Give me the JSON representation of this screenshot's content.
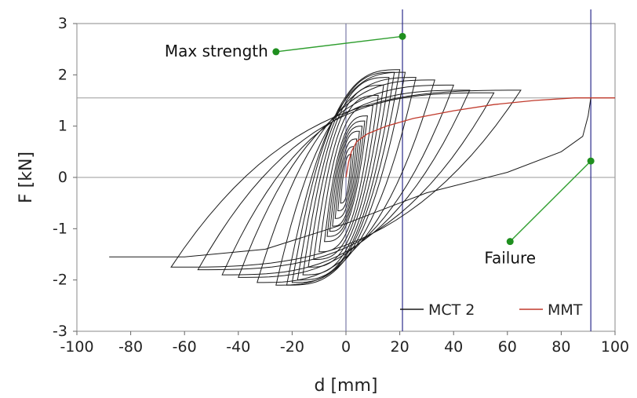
{
  "chart_data": {
    "type": "line",
    "xlabel": "d [mm]",
    "ylabel": "F [kN]",
    "xlim": [
      -100,
      100
    ],
    "ylim": [
      -3,
      3
    ],
    "x_ticks": [
      -100,
      -80,
      -60,
      -40,
      -20,
      0,
      20,
      40,
      60,
      80,
      100
    ],
    "y_ticks": [
      -3,
      -2,
      -1,
      0,
      1,
      2,
      3
    ],
    "x_tick_labels": [
      "-100",
      "-80",
      "-60",
      "-40",
      "-20",
      "0",
      "20",
      "40",
      "60",
      "80",
      "100"
    ],
    "y_tick_labels": [
      "-3",
      "-2",
      "-1",
      "0",
      "1",
      "2",
      "3"
    ],
    "grid": false,
    "legend_position": "bottom-right",
    "colors": {
      "cyclic": "#1a1a1a",
      "monotonic": "#c0392b",
      "marker": "#1f8f1f",
      "marker_line": "#2f9e2f",
      "vline": "#2b2b8c"
    },
    "series": [
      {
        "name": "MCT 2",
        "kind": "cyclic",
        "loops": [
          {
            "a": 2,
            "f": 0.45,
            "fmin": -0.5,
            "p": 3
          },
          {
            "a": 3,
            "f": 0.6,
            "fmin": -0.65,
            "p": 3
          },
          {
            "a": 4,
            "f": 0.75,
            "fmin": -0.8,
            "p": 3
          },
          {
            "a": 5,
            "f": 0.9,
            "fmin": -0.95,
            "p": 3
          },
          {
            "a": 6,
            "f": 1.0,
            "fmin": -1.05,
            "p": 3
          },
          {
            "a": 7,
            "f": 1.1,
            "fmin": -1.15,
            "p": 3
          },
          {
            "a": 8,
            "f": 1.2,
            "fmin": -1.25,
            "p": 3
          },
          {
            "a": 10,
            "f": 1.4,
            "fmin": -1.45,
            "p": 3
          },
          {
            "a": 12,
            "f": 1.6,
            "fmin": -1.6,
            "p": 3
          },
          {
            "a": 14,
            "f": 1.8,
            "fmin": -1.75,
            "p": 3
          },
          {
            "a": 16,
            "f": 1.95,
            "fmin": -1.9,
            "p": 3
          },
          {
            "a": 18,
            "f": 2.05,
            "fmin": -2.0,
            "p": 3
          },
          {
            "a": 20,
            "f": 2.1,
            "fmin": -2.05,
            "p": 3
          },
          {
            "a": 22,
            "f": 2.05,
            "fmin": -2.1,
            "p": 3
          },
          {
            "a": 26,
            "f": 1.95,
            "fmin": -2.1,
            "p": 3
          },
          {
            "a": 33,
            "f": 1.9,
            "fmin": -2.05,
            "p": 3
          },
          {
            "a": 40,
            "f": 1.8,
            "fmin": -1.95,
            "p": 3
          },
          {
            "a": 46,
            "f": 1.7,
            "fmin": -1.9,
            "p": 3
          },
          {
            "a": 55,
            "f": 1.65,
            "fmin": -1.8,
            "p": 3
          },
          {
            "a": 65,
            "f": 1.7,
            "fmin": -1.75,
            "p": 3
          }
        ],
        "final_branch": {
          "x": [
            -88,
            -60,
            -30,
            0,
            30,
            60,
            80,
            88,
            90,
            91
          ],
          "y": [
            -1.55,
            -1.55,
            -1.4,
            -0.9,
            -0.3,
            0.1,
            0.5,
            0.8,
            1.2,
            1.55
          ]
        }
      },
      {
        "name": "MMT",
        "kind": "monotonic",
        "x": [
          0,
          1,
          2,
          4,
          8,
          15,
          25,
          40,
          55,
          70,
          85,
          100
        ],
        "y": [
          0,
          0.3,
          0.5,
          0.7,
          0.85,
          1.0,
          1.15,
          1.3,
          1.42,
          1.5,
          1.55,
          1.55
        ]
      }
    ],
    "vertical_lines": [
      0,
      21,
      91
    ],
    "horizontal_lines": [
      0,
      1.55
    ],
    "annotations": [
      {
        "label": "Max strength",
        "marker": [
          -26,
          2.45
        ],
        "target": [
          21,
          2.75
        ],
        "anchor": "end"
      },
      {
        "label": "Failure",
        "marker": [
          61,
          -1.25
        ],
        "target": [
          91,
          0.32
        ],
        "anchor": "middle"
      }
    ]
  }
}
